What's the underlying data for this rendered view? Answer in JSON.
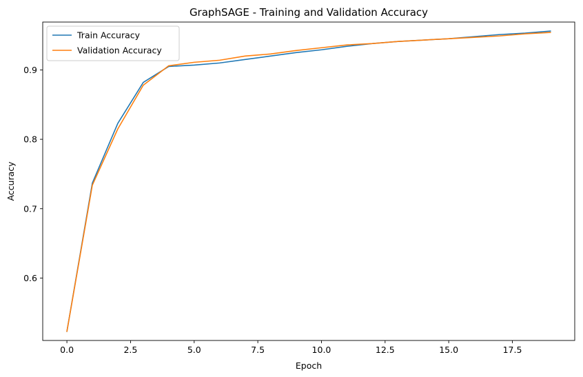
{
  "chart_data": {
    "type": "line",
    "title": "GraphSAGE - Training and Validation Accuracy",
    "xlabel": "Epoch",
    "ylabel": "Accuracy",
    "xlim": [
      -0.95,
      19.95
    ],
    "ylim": [
      0.51,
      0.969
    ],
    "xticks": [
      0.0,
      2.5,
      5.0,
      7.5,
      10.0,
      12.5,
      15.0,
      17.5
    ],
    "xtick_labels": [
      "0.0",
      "2.5",
      "5.0",
      "7.5",
      "10.0",
      "12.5",
      "15.0",
      "17.5"
    ],
    "yticks": [
      0.6,
      0.7,
      0.8,
      0.9
    ],
    "ytick_labels": [
      "0.6",
      "0.7",
      "0.8",
      "0.9"
    ],
    "grid": false,
    "legend_position": "top-left",
    "x": [
      0,
      1,
      2,
      3,
      4,
      5,
      6,
      7,
      8,
      9,
      10,
      11,
      12,
      13,
      14,
      15,
      16,
      17,
      18,
      19
    ],
    "series": [
      {
        "name": "Train Accuracy",
        "color": "#1f77b4",
        "values": [
          0.523,
          0.737,
          0.823,
          0.882,
          0.905,
          0.907,
          0.91,
          0.915,
          0.92,
          0.925,
          0.929,
          0.934,
          0.938,
          0.941,
          0.943,
          0.945,
          0.948,
          0.951,
          0.953,
          0.956
        ]
      },
      {
        "name": "Validation Accuracy",
        "color": "#ff7f0e",
        "values": [
          0.523,
          0.734,
          0.815,
          0.878,
          0.906,
          0.911,
          0.914,
          0.92,
          0.923,
          0.928,
          0.932,
          0.936,
          0.938,
          0.941,
          0.943,
          0.945,
          0.947,
          0.949,
          0.952,
          0.954
        ]
      }
    ]
  }
}
